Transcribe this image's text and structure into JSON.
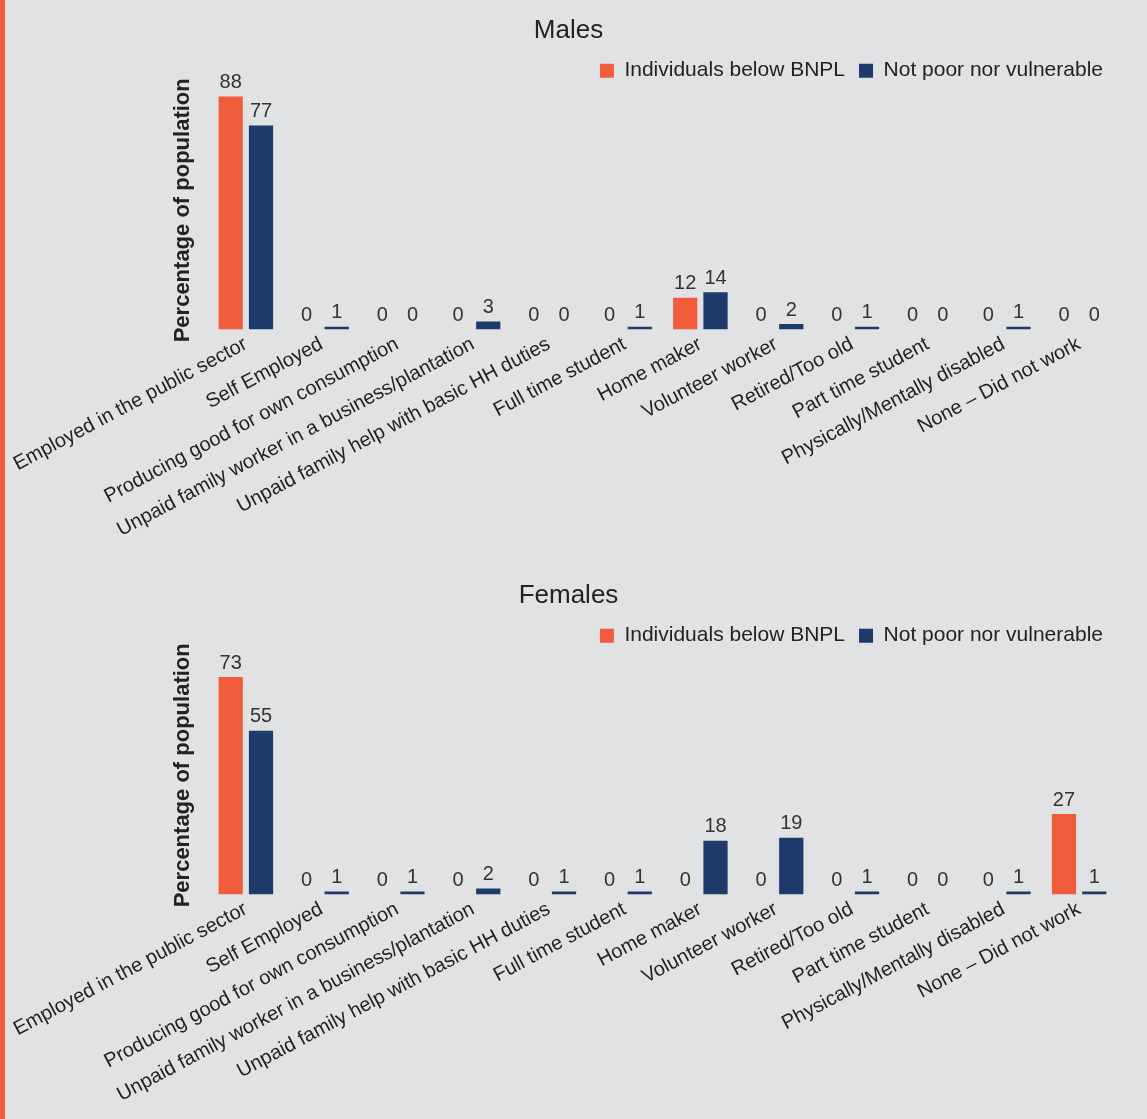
{
  "chart_data": [
    {
      "type": "bar",
      "title": "Males",
      "ylabel": "Percentage of population",
      "categories": [
        "Employed in the public sector",
        "Self Employed",
        "Producing good for own consumption",
        "Unpaid family worker in a business/plantation",
        "Unpaid family help with basic HH duties",
        "Full time student",
        "Home maker",
        "Volunteer worker",
        "Retired/Too old",
        "Part time student",
        "Physically/Mentally disabled",
        "None – Did not work"
      ],
      "series": [
        {
          "name": "Individuals below BNPL",
          "color": "#f15d3c",
          "values": [
            88,
            0,
            0,
            0,
            0,
            0,
            12,
            0,
            0,
            0,
            0,
            0
          ]
        },
        {
          "name": "Not poor nor vulnerable",
          "color": "#1d3a6b",
          "values": [
            77,
            1,
            0,
            3,
            0,
            1,
            14,
            2,
            1,
            0,
            1,
            0
          ]
        }
      ],
      "data_labels": true,
      "legend": "top right",
      "grid": false
    },
    {
      "type": "bar",
      "title": "Females",
      "ylabel": "Percentage of population",
      "categories": [
        "Employed in the public sector",
        "Self Employed",
        "Producing good for own consumption",
        "Unpaid family worker in a business/plantation",
        "Unpaid family help with basic HH duties",
        "Full time student",
        "Home maker",
        "Volunteer worker",
        "Retired/Too old",
        "Part time student",
        "Physically/Mentally disabled",
        "None – Did not work"
      ],
      "series": [
        {
          "name": "Individuals below BNPL",
          "color": "#f15d3c",
          "values": [
            73,
            0,
            0,
            0,
            0,
            0,
            0,
            0,
            0,
            0,
            0,
            27
          ]
        },
        {
          "name": "Not poor nor vulnerable",
          "color": "#1d3a6b",
          "values": [
            55,
            1,
            1,
            2,
            1,
            1,
            18,
            19,
            1,
            0,
            1,
            1
          ]
        }
      ],
      "data_labels": true,
      "legend": "top right",
      "grid": false
    }
  ]
}
